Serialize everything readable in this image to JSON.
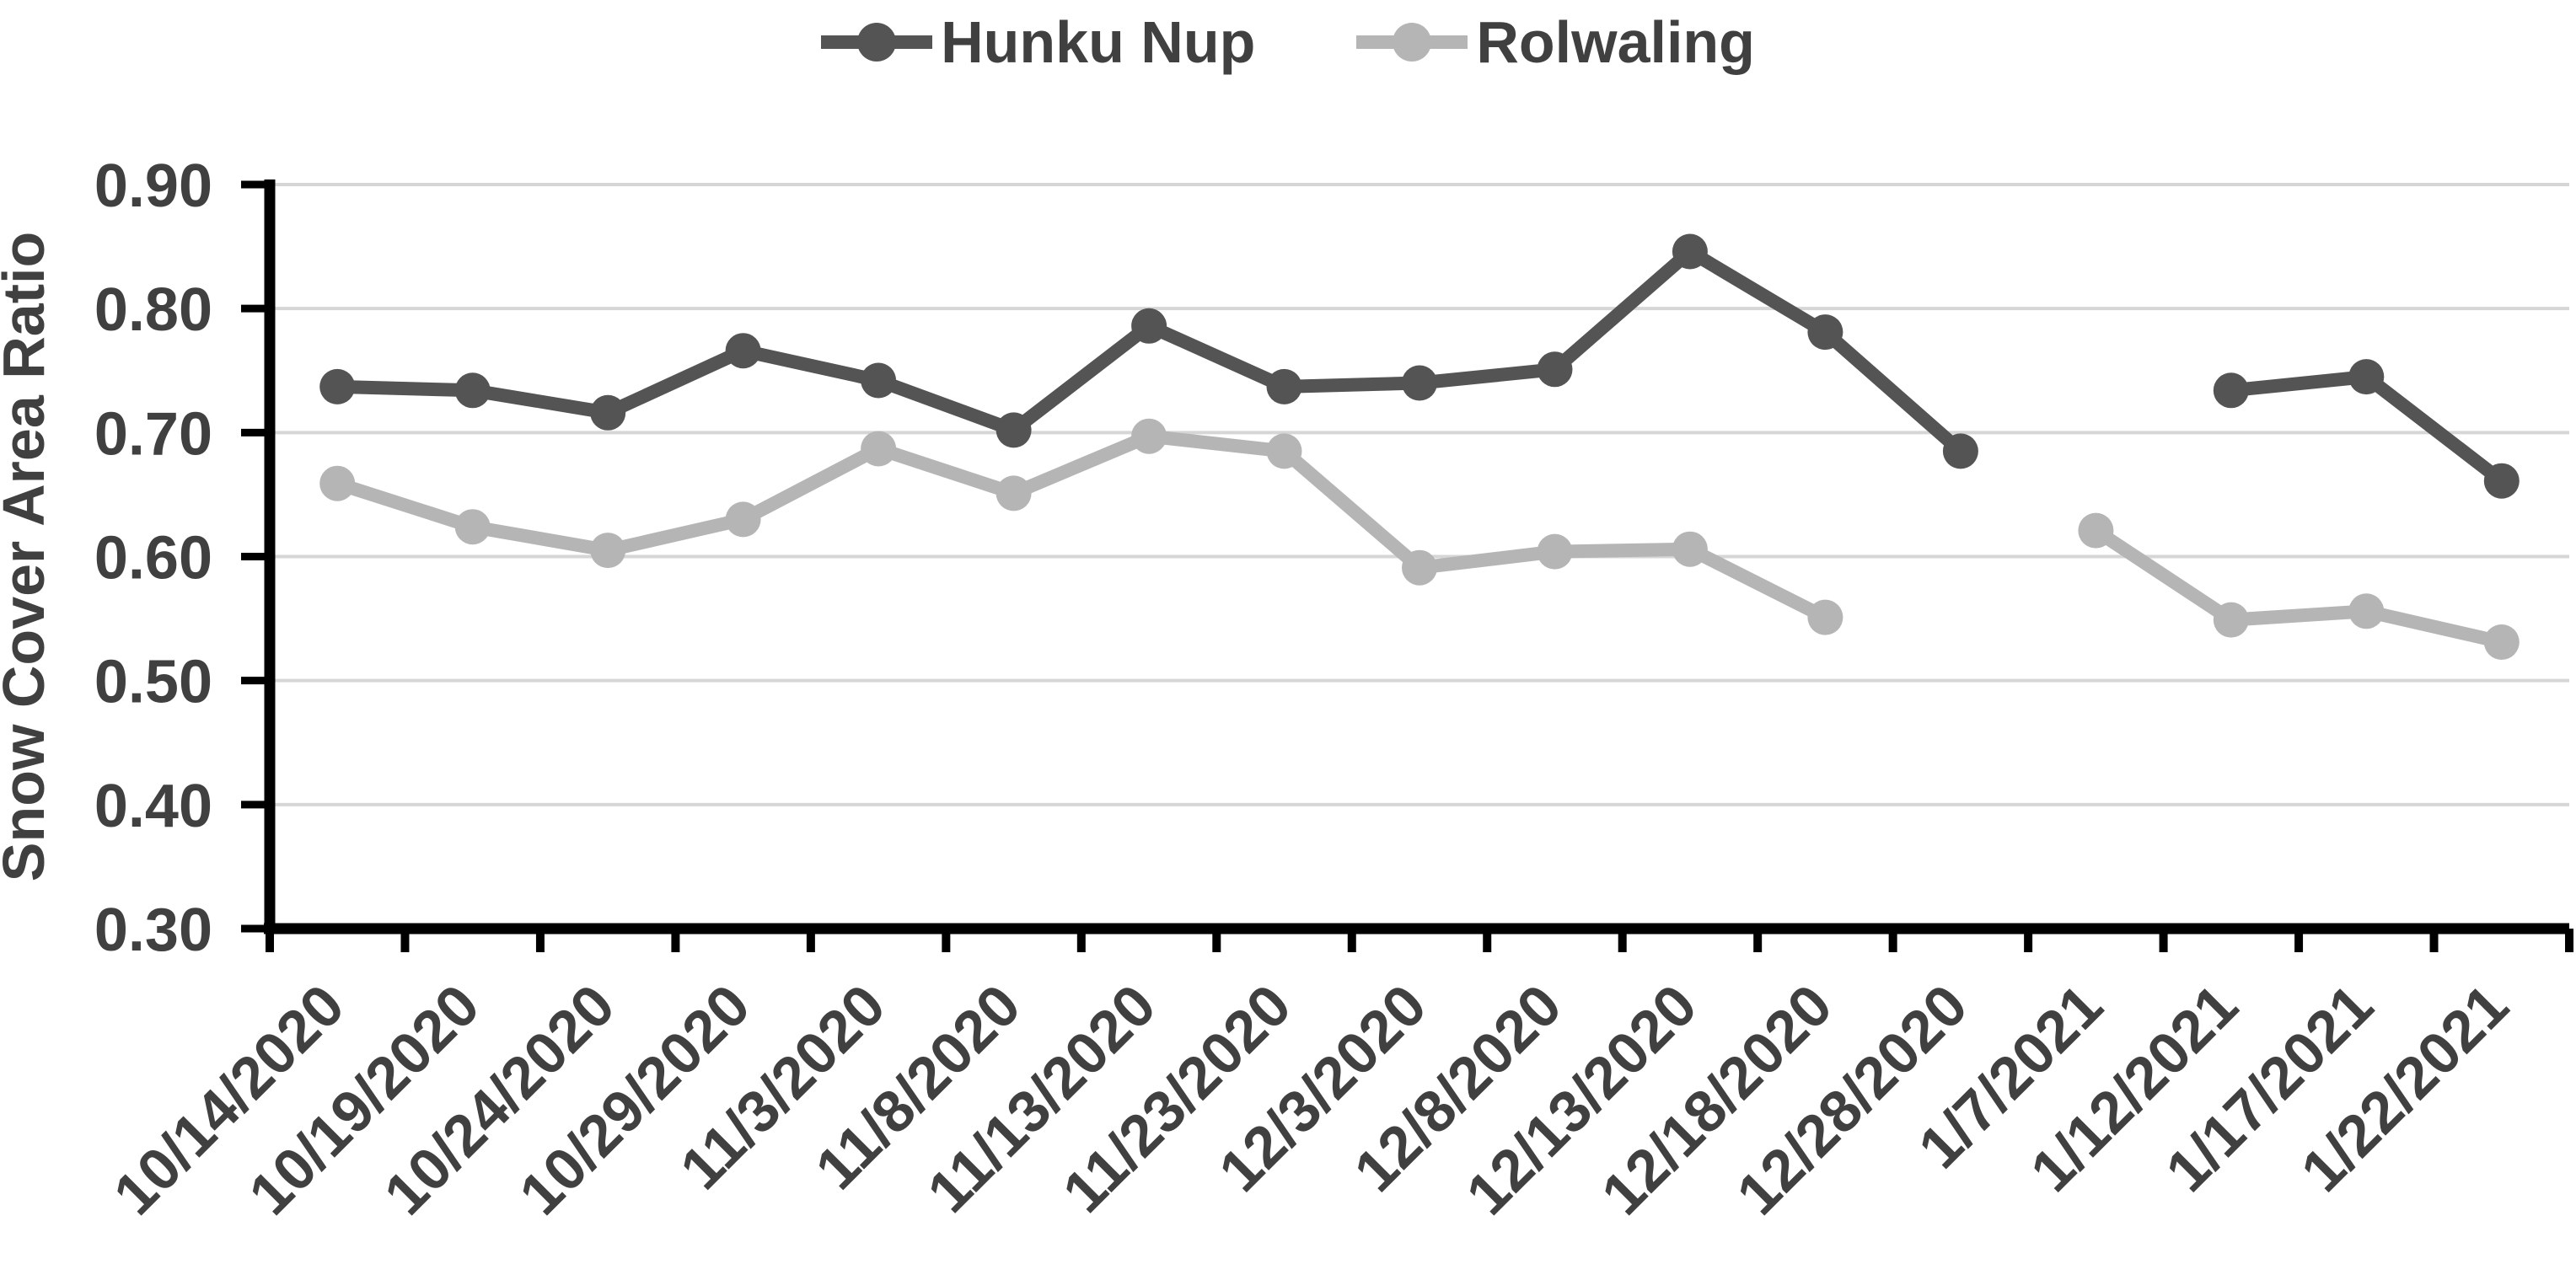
{
  "chart_data": {
    "type": "line",
    "title": "",
    "xlabel": "",
    "ylabel": "Snow Cover Area Ratio",
    "ylim": [
      0.3,
      0.9
    ],
    "ytick_step": 0.1,
    "ytick_labels": [
      "0.30",
      "0.40",
      "0.50",
      "0.60",
      "0.70",
      "0.80",
      "0.90"
    ],
    "grid": true,
    "legend_position": "top-center",
    "categories": [
      "10/14/2020",
      "10/19/2020",
      "10/24/2020",
      "10/29/2020",
      "11/3/2020",
      "11/8/2020",
      "11/13/2020",
      "11/23/2020",
      "12/3/2020",
      "12/8/2020",
      "12/13/2020",
      "12/18/2020",
      "12/28/2020",
      "1/7/2021",
      "1/12/2021",
      "1/17/2021",
      "1/22/2021"
    ],
    "series": [
      {
        "name": "Hunku Nup",
        "color": "#545454",
        "values": [
          0.737,
          0.734,
          0.716,
          0.766,
          0.742,
          0.702,
          0.786,
          0.737,
          0.74,
          0.751,
          0.846,
          0.781,
          0.685,
          null,
          0.734,
          0.745,
          0.661
        ]
      },
      {
        "name": "Rolwaling",
        "color": "#b5b5b5",
        "values": [
          0.659,
          0.624,
          0.605,
          0.63,
          0.687,
          0.651,
          0.697,
          0.685,
          0.591,
          0.604,
          0.606,
          0.551,
          null,
          0.621,
          0.549,
          0.556,
          0.531
        ]
      }
    ],
    "colors": {
      "axis": "#000000",
      "gridline": "#d6d6d6",
      "text": "#404040",
      "background": "#ffffff"
    }
  }
}
